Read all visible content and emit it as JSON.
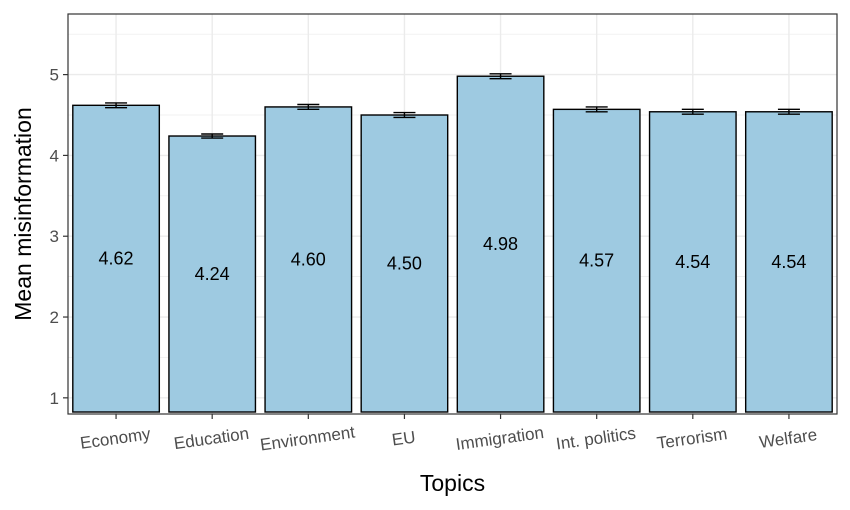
{
  "chart_data": {
    "type": "bar",
    "title": "",
    "xlabel": "Topics",
    "ylabel": "Mean misinformation",
    "categories": [
      "Economy",
      "Education",
      "Environment",
      "EU",
      "Immigration",
      "Int. politics",
      "Terrorism",
      "Welfare"
    ],
    "values": [
      4.62,
      4.24,
      4.6,
      4.5,
      4.98,
      4.57,
      4.54,
      4.54
    ],
    "data_labels": [
      "4.62",
      "4.24",
      "4.60",
      "4.50",
      "4.98",
      "4.57",
      "4.54",
      "4.54"
    ],
    "error_half_width": [
      0.03,
      0.025,
      0.03,
      0.03,
      0.03,
      0.03,
      0.03,
      0.03
    ],
    "ylim": [
      0.8,
      5.75
    ],
    "yticks": [
      1,
      2,
      3,
      4,
      5
    ],
    "ytick_labels": [
      "1",
      "2",
      "3",
      "4",
      "5"
    ],
    "grid": true,
    "legend": "none",
    "colors": {
      "bar_fill": "#9ecae1",
      "bar_stroke": "#000000",
      "grid": "#ebebeb",
      "panel_border": "#333333"
    }
  }
}
